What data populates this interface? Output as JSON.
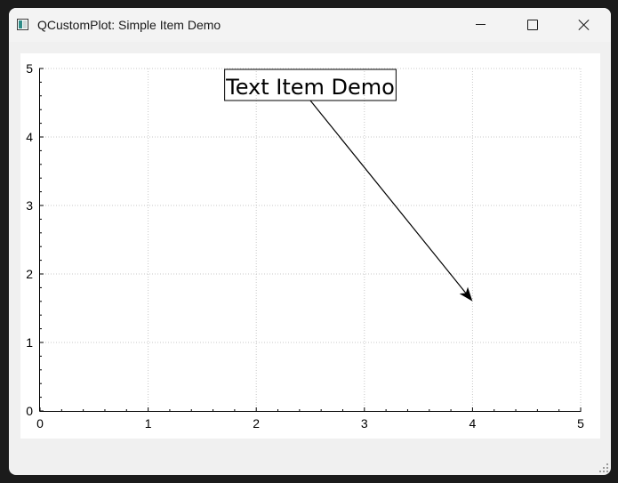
{
  "window": {
    "title": "QCustomPlot: Simple Item Demo",
    "app_icon": "qt-app-icon",
    "buttons": {
      "minimize_icon": "minimize-icon",
      "maximize_icon": "maximize-icon",
      "close_icon": "close-icon"
    }
  },
  "colors": {
    "window_bg": "#f0f0f0",
    "plot_bg": "#ffffff",
    "grid": "#c8c8c8",
    "axis": "#000000",
    "text": "#000000"
  },
  "chart_data": {
    "type": "scatter",
    "title": "",
    "xlabel": "",
    "ylabel": "",
    "xlim": [
      0,
      5
    ],
    "ylim": [
      0,
      5
    ],
    "x_ticks": [
      0,
      1,
      2,
      3,
      4,
      5
    ],
    "y_ticks": [
      0,
      1,
      2,
      3,
      4,
      5
    ],
    "x_tick_labels": [
      "0",
      "1",
      "2",
      "3",
      "4",
      "5"
    ],
    "y_tick_labels": [
      "0",
      "1",
      "2",
      "3",
      "4",
      "5"
    ],
    "x_subticks_per_interval": 4,
    "y_subticks_per_interval": 4,
    "grid": true,
    "grid_style": "dotted",
    "series": [],
    "items": {
      "text": {
        "label": "Text Item Demo",
        "anchor": "top-center",
        "x": 2.5,
        "y": 5,
        "bordered": true
      },
      "arrow": {
        "start": "text-item-bottom-center",
        "end_x": 4,
        "end_y": 1.6,
        "head": "arrow"
      }
    }
  }
}
